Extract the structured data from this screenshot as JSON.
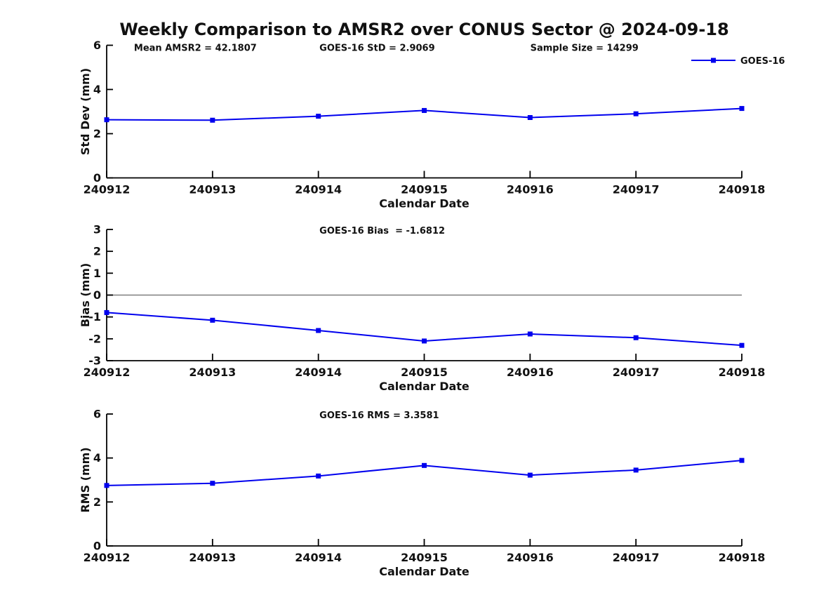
{
  "title": "Weekly Comparison to AMSR2 over CONUS Sector @ 2024-09-18",
  "colors": {
    "series": "#0000ee",
    "zero_line": "#7f7f7f",
    "axis": "#000000",
    "text": "#111111",
    "background": "#ffffff"
  },
  "chart_data": [
    {
      "type": "line",
      "id": "stddev",
      "ylabel": "Std Dev (mm)",
      "xlabel": "Calendar Date",
      "x": [
        "240912",
        "240913",
        "240914",
        "240915",
        "240916",
        "240917",
        "240918"
      ],
      "series": [
        {
          "name": "GOES-16",
          "color": "#0000ee",
          "marker": "square",
          "values": [
            2.63,
            2.61,
            2.79,
            3.05,
            2.73,
            2.9,
            3.14
          ]
        }
      ],
      "ylim": [
        0,
        6
      ],
      "yticks": [
        0,
        2,
        4,
        6
      ],
      "grid": false,
      "annotations": [
        {
          "text": "Mean AMSR2 = 42.1807"
        },
        {
          "text": "GOES-16 StD = 2.9069"
        },
        {
          "text": "Sample Size = 14299"
        }
      ],
      "legend": {
        "label": "GOES-16",
        "position": "top-right"
      }
    },
    {
      "type": "line",
      "id": "bias",
      "ylabel": "Bias (mm)",
      "xlabel": "Calendar Date",
      "x": [
        "240912",
        "240913",
        "240914",
        "240915",
        "240916",
        "240917",
        "240918"
      ],
      "series": [
        {
          "name": "GOES-16",
          "color": "#0000ee",
          "marker": "square",
          "values": [
            -0.8,
            -1.15,
            -1.62,
            -2.1,
            -1.78,
            -1.95,
            -2.3
          ]
        }
      ],
      "ylim": [
        -3,
        3
      ],
      "yticks": [
        -3,
        -2,
        -1,
        0,
        1,
        2,
        3
      ],
      "grid": false,
      "zero_line": true,
      "annotations": [
        {
          "text": "GOES-16 Bias  = -1.6812"
        }
      ]
    },
    {
      "type": "line",
      "id": "rms",
      "ylabel": "RMS (mm)",
      "xlabel": "Calendar Date",
      "x": [
        "240912",
        "240913",
        "240914",
        "240915",
        "240916",
        "240917",
        "240918"
      ],
      "series": [
        {
          "name": "GOES-16",
          "color": "#0000ee",
          "marker": "square",
          "values": [
            2.75,
            2.85,
            3.18,
            3.66,
            3.22,
            3.45,
            3.89
          ]
        }
      ],
      "ylim": [
        0,
        6
      ],
      "yticks": [
        0,
        2,
        4,
        6
      ],
      "grid": false,
      "annotations": [
        {
          "text": "GOES-16 RMS = 3.3581"
        }
      ]
    }
  ]
}
